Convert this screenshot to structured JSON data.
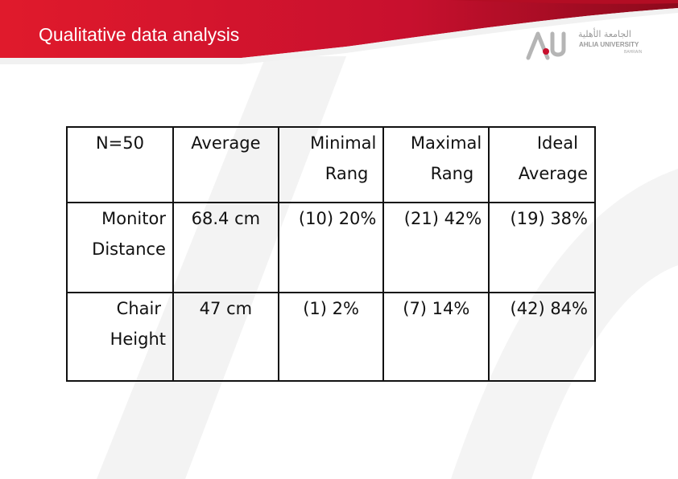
{
  "slide": {
    "title": "Qualitative data analysis",
    "accent_color": "#c8102e",
    "logo": {
      "arabic_name": "الجامعة الأهلية",
      "english_name": "AHLIA UNIVERSITY",
      "location": "BAHRAIN"
    }
  },
  "table": {
    "header": [
      [
        "N=50"
      ],
      [
        "Average"
      ],
      [
        "Minimal",
        "Rang"
      ],
      [
        "Maximal",
        "Rang"
      ],
      [
        "Ideal",
        "Average"
      ]
    ],
    "rows": [
      {
        "label": [
          "Monitor",
          "Distance"
        ],
        "average": "68.4 cm",
        "minimal": "(10) 20%",
        "maximal": "(21) 42%",
        "ideal": "(19) 38%"
      },
      {
        "label": [
          "Chair",
          "Height"
        ],
        "average": "47 cm",
        "minimal": "(1) 2%",
        "maximal": "(7) 14%",
        "ideal": "(42) 84%"
      }
    ]
  }
}
